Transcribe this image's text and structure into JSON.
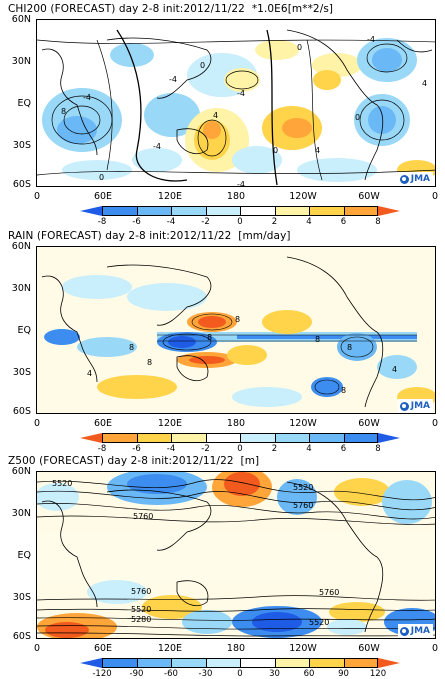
{
  "panels": [
    {
      "title": "CHI200 (FORECAST) day 2-8 init:2012/11/22  *1.0E6[m**2/s]",
      "contour_labels": [
        "-4",
        "8",
        "-4",
        "0",
        "-4",
        "0",
        "4",
        "-4",
        "4",
        "-4",
        "0",
        "0",
        "4",
        "0",
        "-4"
      ],
      "colorbar": {
        "labels": [
          "-8",
          "-6",
          "-4",
          "-2",
          "0",
          "2",
          "4",
          "6",
          "8"
        ],
        "colors": [
          "#1f5ce6",
          "#3d8df0",
          "#6ab8f5",
          "#9ad8f8",
          "#c9eefc",
          "#ffffff",
          "#fff3a8",
          "#ffd44a",
          "#ffa53a",
          "#f25a1e"
        ]
      }
    },
    {
      "title": "RAIN (FORECAST) day 2-8 init:2012/11/22  [mm/day]",
      "contour_labels": [
        "8",
        "8",
        "8",
        "8",
        "8",
        "8",
        "4",
        "4",
        "8"
      ],
      "colorbar": {
        "labels": [
          "-8",
          "-6",
          "-4",
          "-2",
          "0",
          "2",
          "4",
          "6",
          "8"
        ],
        "colors": [
          "#f25a1e",
          "#ffa53a",
          "#ffd44a",
          "#fff3a8",
          "#ffffff",
          "#c9eefc",
          "#9ad8f8",
          "#6ab8f5",
          "#3d8df0",
          "#1f5ce6"
        ]
      }
    },
    {
      "title": "Z500 (FORECAST) day 2-8 init:2012/11/22  [m]",
      "contour_labels": [
        "5520",
        "5760",
        "5520",
        "5760",
        "5760",
        "5760",
        "5520",
        "5280",
        "5520"
      ],
      "colorbar": {
        "labels": [
          "-120",
          "-90",
          "-60",
          "-30",
          "0",
          "30",
          "60",
          "90",
          "120"
        ],
        "colors": [
          "#1f5ce6",
          "#3d8df0",
          "#6ab8f5",
          "#9ad8f8",
          "#c9eefc",
          "#ffffff",
          "#fff3a8",
          "#ffd44a",
          "#ffa53a",
          "#f25a1e"
        ]
      }
    }
  ],
  "lat_labels": [
    "60N",
    "30N",
    "EQ",
    "30S",
    "60S"
  ],
  "lon_labels": [
    "0",
    "60E",
    "120E",
    "180",
    "120W",
    "60W",
    "0"
  ],
  "logo_text": "JMA"
}
